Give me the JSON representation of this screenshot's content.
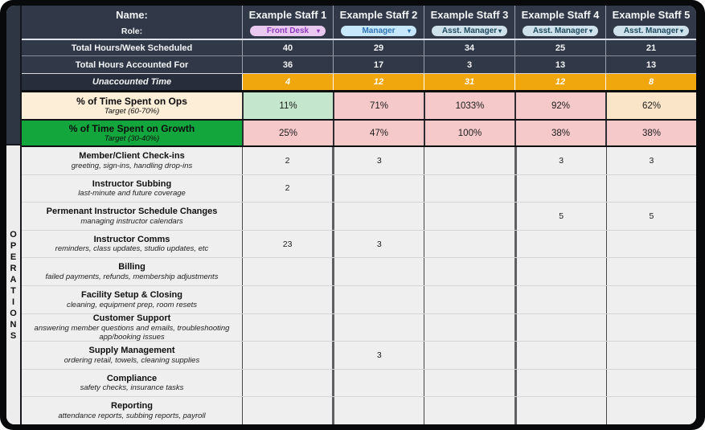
{
  "section_label": "OPERATIONS",
  "header": {
    "name_label": "Name:",
    "role_label": "Role:",
    "scheduled_label": "Total Hours/Week Scheduled",
    "accounted_label": "Total Hours Accounted For",
    "unaccounted_label": "Unaccounted Time"
  },
  "staff": {
    "names": [
      "Example Staff 1",
      "Example Staff 2",
      "Example Staff 3",
      "Example Staff 4",
      "Example Staff 5"
    ],
    "roles": [
      {
        "label": "Front Desk",
        "variant": "front-desk"
      },
      {
        "label": "Manager",
        "variant": "manager"
      },
      {
        "label": "Asst. Manager",
        "variant": "asst-manager"
      },
      {
        "label": "Asst. Manager",
        "variant": "asst-manager"
      },
      {
        "label": "Asst. Manager",
        "variant": "asst-manager"
      }
    ],
    "scheduled": [
      "40",
      "29",
      "34",
      "25",
      "21"
    ],
    "accounted": [
      "36",
      "17",
      "3",
      "13",
      "13"
    ],
    "unaccounted": [
      "4",
      "12",
      "31",
      "12",
      "8"
    ]
  },
  "percent": {
    "ops": {
      "title": "% of Time Spent on Ops",
      "target": "Target (60-70%)",
      "values": [
        "11%",
        "71%",
        "1033%",
        "92%",
        "62%"
      ],
      "states": [
        "good",
        "bad",
        "bad",
        "bad",
        "warn"
      ]
    },
    "growth": {
      "title": "% of Time Spent on Growth",
      "target": "Target (30-40%)",
      "values": [
        "25%",
        "47%",
        "100%",
        "38%",
        "38%"
      ],
      "states": [
        "bad",
        "bad",
        "bad",
        "bad",
        "bad"
      ]
    }
  },
  "tasks": [
    {
      "title": "Member/Client Check-ins",
      "subtitle": "greeting, sign-ins, handling drop-ins",
      "values": [
        "2",
        "3",
        "",
        "3",
        "3"
      ]
    },
    {
      "title": "Instructor Subbing",
      "subtitle": "last-minute and future coverage",
      "values": [
        "2",
        "",
        "",
        "",
        ""
      ]
    },
    {
      "title": "Permenant Instructor Schedule Changes",
      "subtitle": "managing instructor calendars",
      "values": [
        "",
        "",
        "",
        "5",
        "5"
      ]
    },
    {
      "title": "Instructor Comms",
      "subtitle": "reminders, class updates, studio updates, etc",
      "values": [
        "23",
        "3",
        "",
        "",
        ""
      ]
    },
    {
      "title": "Billing",
      "subtitle": "failed payments, refunds, membership adjustments",
      "values": [
        "",
        "",
        "",
        "",
        ""
      ]
    },
    {
      "title": "Facility Setup & Closing",
      "subtitle": "cleaning, equipment prep, room resets",
      "values": [
        "",
        "",
        "",
        "",
        ""
      ]
    },
    {
      "title": "Customer Support",
      "subtitle": "answering member questions and emails, troubleshooting app/booking issues",
      "values": [
        "",
        "",
        "",
        "",
        ""
      ]
    },
    {
      "title": "Supply Management",
      "subtitle": "ordering retail, towels, cleaning supplies",
      "values": [
        "",
        "3",
        "",
        "",
        ""
      ]
    },
    {
      "title": "Compliance",
      "subtitle": "safety checks, insurance tasks",
      "values": [
        "",
        "",
        "",
        "",
        ""
      ]
    },
    {
      "title": "Reporting",
      "subtitle": "attendance reports, subbing reports, payroll",
      "values": [
        "",
        "",
        "",
        "",
        ""
      ]
    }
  ],
  "icons": {
    "chevron_down": "▾"
  },
  "colors": {
    "header_bg": "#313847",
    "unaccounted_bg": "#f0a70d",
    "ops_label_bg": "#fdeed8",
    "growth_label_bg": "#13a63d",
    "good_cell": "#c3e6cd",
    "bad_cell": "#f5c8ca",
    "warn_cell": "#fbe5c9",
    "front_desk_pill": "#eac9f1",
    "front_desk_text": "#8d3abc",
    "manager_pill": "#c7e7fa",
    "manager_text": "#2e74b5",
    "asst_manager_pill": "#cfe1ea",
    "asst_manager_text": "#1d4a5f"
  }
}
